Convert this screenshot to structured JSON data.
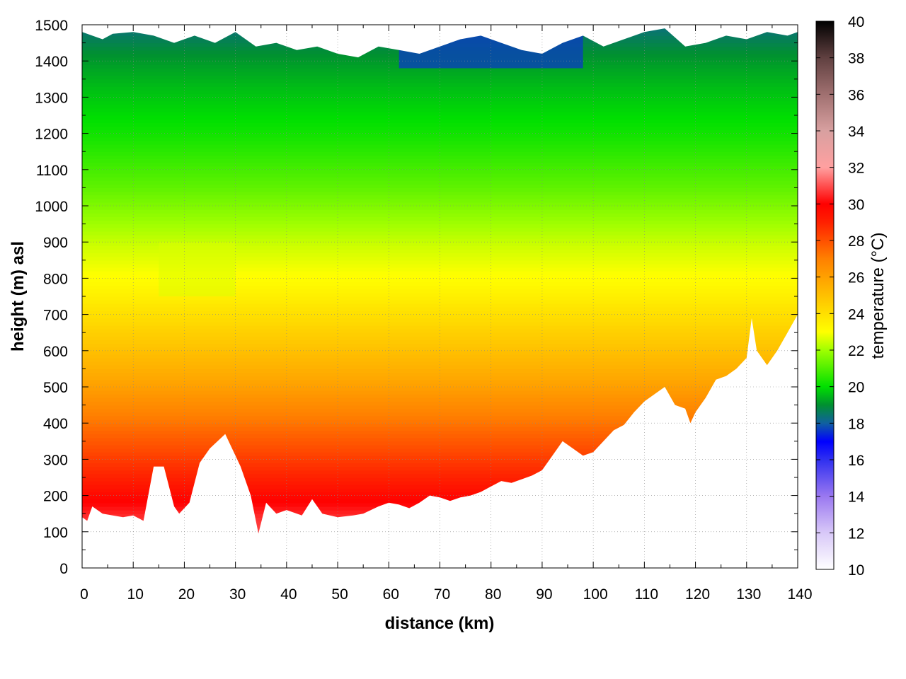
{
  "chart_data": {
    "type": "heatmap",
    "title": "",
    "xlabel": "distance (km)",
    "ylabel": "height (m) asl",
    "colorbar_label": "temperature (°C)",
    "xlim": [
      0,
      140
    ],
    "ylim": [
      0,
      1500
    ],
    "clim": [
      10,
      40
    ],
    "x_ticks": [
      "0",
      "10",
      "20",
      "30",
      "40",
      "50",
      "60",
      "70",
      "80",
      "90",
      "100",
      "110",
      "120",
      "130",
      "140"
    ],
    "y_ticks": [
      "0",
      "100",
      "200",
      "300",
      "400",
      "500",
      "600",
      "700",
      "800",
      "900",
      "1000",
      "1100",
      "1200",
      "1300",
      "1400",
      "1500"
    ],
    "colorbar_ticks": [
      "10",
      "12",
      "14",
      "16",
      "18",
      "20",
      "22",
      "24",
      "26",
      "28",
      "30",
      "32",
      "34",
      "36",
      "38",
      "40"
    ],
    "grid": true,
    "colormap": [
      {
        "t": 10,
        "color": "#ffffff"
      },
      {
        "t": 12,
        "color": "#d8c8f8"
      },
      {
        "t": 14,
        "color": "#9a78f0"
      },
      {
        "t": 16,
        "color": "#3030f0"
      },
      {
        "t": 17,
        "color": "#0000ff"
      },
      {
        "t": 18,
        "color": "#1060a0"
      },
      {
        "t": 19,
        "color": "#009030"
      },
      {
        "t": 20,
        "color": "#00e000"
      },
      {
        "t": 22,
        "color": "#a0ff00"
      },
      {
        "t": 23,
        "color": "#ffff00"
      },
      {
        "t": 25,
        "color": "#ffc000"
      },
      {
        "t": 27,
        "color": "#ff8000"
      },
      {
        "t": 29,
        "color": "#ff2000"
      },
      {
        "t": 30,
        "color": "#ff0000"
      },
      {
        "t": 31,
        "color": "#ff5050"
      },
      {
        "t": 32,
        "color": "#ffa0a0"
      },
      {
        "t": 34,
        "color": "#d8a0a0"
      },
      {
        "t": 36,
        "color": "#a07070"
      },
      {
        "t": 38,
        "color": "#604040"
      },
      {
        "t": 40,
        "color": "#000000"
      }
    ],
    "surface": {
      "distance_km": [
        0,
        1,
        2,
        4,
        6,
        8,
        10,
        12,
        14,
        16,
        18,
        19,
        21,
        23,
        25,
        28,
        31,
        33,
        34.5,
        36,
        38,
        40,
        43,
        45,
        47,
        50,
        53,
        55,
        58,
        60,
        62,
        64,
        66,
        68,
        70,
        72,
        74,
        76,
        78,
        80,
        82,
        84,
        86,
        88,
        90,
        92,
        94,
        96,
        98,
        100,
        102,
        104,
        106,
        108,
        110,
        112,
        114,
        116,
        118,
        119,
        120,
        122,
        124,
        126,
        128,
        130,
        131,
        132,
        134,
        136,
        138,
        140
      ],
      "height_m": [
        140,
        130,
        170,
        150,
        145,
        140,
        145,
        130,
        280,
        280,
        170,
        150,
        180,
        290,
        330,
        370,
        280,
        200,
        95,
        180,
        150,
        160,
        145,
        190,
        150,
        140,
        145,
        150,
        170,
        180,
        175,
        165,
        180,
        200,
        195,
        185,
        195,
        200,
        210,
        225,
        240,
        235,
        245,
        255,
        270,
        310,
        350,
        330,
        310,
        320,
        350,
        380,
        395,
        430,
        460,
        480,
        500,
        450,
        440,
        400,
        430,
        470,
        520,
        530,
        550,
        580,
        690,
        600,
        560,
        600,
        650,
        700
      ]
    },
    "data_top": {
      "distance_km": [
        0,
        2,
        4,
        6,
        10,
        14,
        18,
        22,
        26,
        30,
        34,
        38,
        42,
        46,
        50,
        54,
        58,
        62,
        66,
        70,
        74,
        78,
        82,
        86,
        90,
        94,
        98,
        102,
        106,
        110,
        114,
        118,
        122,
        126,
        130,
        134,
        138,
        140
      ],
      "height_m": [
        1480,
        1470,
        1460,
        1475,
        1480,
        1470,
        1450,
        1470,
        1450,
        1480,
        1440,
        1450,
        1430,
        1440,
        1420,
        1410,
        1440,
        1430,
        1420,
        1440,
        1460,
        1470,
        1450,
        1430,
        1420,
        1450,
        1470,
        1440,
        1460,
        1480,
        1490,
        1440,
        1450,
        1470,
        1460,
        1480,
        1470,
        1480
      ]
    },
    "temperature_profile": [
      {
        "height_m": 0,
        "temp_c": 31.5
      },
      {
        "height_m": 140,
        "temp_c": 30.6
      },
      {
        "height_m": 250,
        "temp_c": 29.0
      },
      {
        "height_m": 380,
        "temp_c": 27.5
      },
      {
        "height_m": 520,
        "temp_c": 25.8
      },
      {
        "height_m": 650,
        "temp_c": 24.5
      },
      {
        "height_m": 780,
        "temp_c": 23.2
      },
      {
        "height_m": 900,
        "temp_c": 22.4
      },
      {
        "height_m": 1050,
        "temp_c": 21.2
      },
      {
        "height_m": 1200,
        "temp_c": 20.2
      },
      {
        "height_m": 1320,
        "temp_c": 19.6
      },
      {
        "height_m": 1420,
        "temp_c": 19.0
      },
      {
        "height_m": 1500,
        "temp_c": 18.3
      }
    ],
    "cool_patch": {
      "distance_km": [
        62,
        98
      ],
      "height_m": [
        1380,
        1500
      ],
      "temp_c": 17.6
    },
    "inversion_hint": {
      "distance_km": [
        15,
        30
      ],
      "height_m": [
        750,
        900
      ],
      "temp_c": 22.6
    }
  }
}
